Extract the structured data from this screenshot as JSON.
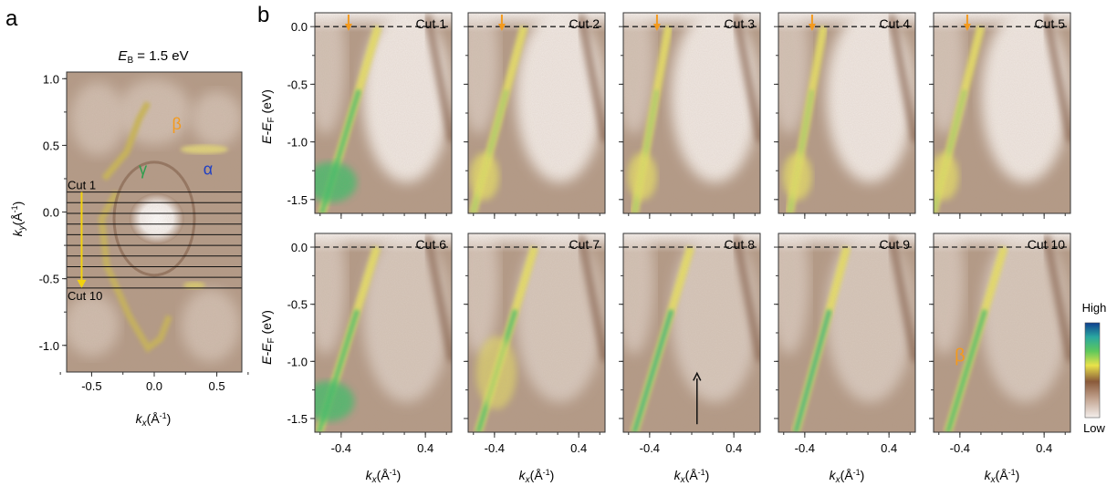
{
  "chart_data": {
    "type": "heatmap",
    "figure_letters": {
      "a": "a",
      "b": "b"
    },
    "panel_a": {
      "title_prefix": "E",
      "title_sub": "B",
      "title_suffix": " = 1.5 eV",
      "xlabel": "k",
      "xlabel_sub": "x",
      "xlabel_unit": "(Å",
      "xlabel_exp": "-1",
      "xlabel_close": ")",
      "ylabel": "k",
      "ylabel_sub": "y",
      "ylabel_unit": "(Å",
      "ylabel_exp": "-1",
      "ylabel_close": ")",
      "xlim": [
        -0.7,
        0.7
      ],
      "ylim": [
        -1.2,
        1.05
      ],
      "xticks": [
        -0.5,
        0.0,
        0.5
      ],
      "xtick_labels": [
        "-0.5",
        "0.0",
        "0.5"
      ],
      "yticks": [
        1.0,
        0.5,
        0.0,
        -0.5,
        -1.0
      ],
      "ytick_labels": [
        "1.0",
        "0.5",
        "0.0",
        "-0.5",
        "-1.0"
      ],
      "band_labels": [
        {
          "text": "β",
          "kx": 0.18,
          "ky": 0.62,
          "color": "#f39a1e"
        },
        {
          "text": "γ",
          "kx": -0.09,
          "ky": 0.28,
          "color": "#2f9e4e"
        },
        {
          "text": "α",
          "kx": 0.43,
          "ky": 0.28,
          "color": "#1f3fc4"
        }
      ],
      "cut_label_first": "Cut 1",
      "cut_label_last": "Cut 10",
      "cut_ky": [
        0.15,
        0.07,
        -0.01,
        -0.09,
        -0.17,
        -0.25,
        -0.33,
        -0.41,
        -0.49,
        -0.57
      ],
      "arrow": {
        "kx": -0.58,
        "ky_from": 0.15,
        "ky_to": -0.57,
        "color": "#f2d20f"
      }
    },
    "panel_b": {
      "xlabel": "k",
      "xlabel_sub": "x",
      "xlabel_unit": "(Å",
      "xlabel_exp": "-1",
      "xlabel_close": ")",
      "ylabel": "E",
      "ylabel_mid": "-E",
      "ylabel_sub": "F",
      "ylabel_unit": " (eV)",
      "xlim": [
        -0.65,
        0.65
      ],
      "ylim": [
        -1.62,
        0.12
      ],
      "xticks": [
        -0.4,
        0.4
      ],
      "xtick_labels": [
        "-0.4",
        "0.4"
      ],
      "yticks": [
        0.0,
        -0.5,
        -1.0,
        -1.5
      ],
      "ytick_labels": [
        "0.0",
        "-0.5",
        "-1.0",
        "-1.5"
      ],
      "fermi_level": 0.0,
      "cuts": [
        {
          "label": "Cut 1",
          "arrow_kx": -0.33,
          "band_top_kx": -0.05,
          "slope": -0.33
        },
        {
          "label": "Cut 2",
          "arrow_kx": -0.33,
          "band_top_kx": -0.12,
          "slope": -0.3
        },
        {
          "label": "Cut 3",
          "arrow_kx": -0.33,
          "band_top_kx": -0.22,
          "slope": -0.2
        },
        {
          "label": "Cut 4",
          "arrow_kx": -0.33,
          "band_top_kx": -0.22,
          "slope": -0.2
        },
        {
          "label": "Cut 5",
          "arrow_kx": -0.33,
          "band_top_kx": -0.2,
          "slope": -0.28
        },
        {
          "label": "Cut 6",
          "band_top_kx": -0.06,
          "slope": -0.34
        },
        {
          "label": "Cut 7",
          "band_top_kx": -0.02,
          "slope": -0.33
        },
        {
          "label": "Cut 8",
          "band_top_kx": -0.01,
          "slope": -0.33,
          "black_arrow_kx": 0.05
        },
        {
          "label": "Cut 9",
          "band_top_kx": 0.0,
          "slope": -0.3
        },
        {
          "label": "Cut 10",
          "band_top_kx": 0.02,
          "slope": -0.33,
          "label_beta": "β"
        }
      ]
    },
    "colorbar": {
      "high_label": "High",
      "low_label": "Low",
      "stops": [
        "#0f3f8f",
        "#2aa7a0",
        "#5ec85c",
        "#e9e24a",
        "#8a5a3a",
        "#c2a38f",
        "#f4efec"
      ]
    },
    "colors": {
      "bg_brown": "#b39a87",
      "band_green": "#41bd6a",
      "band_yellow": "#e7e065",
      "arrow_orange": "#f39a1e",
      "fermi_dash": "#222222"
    }
  }
}
